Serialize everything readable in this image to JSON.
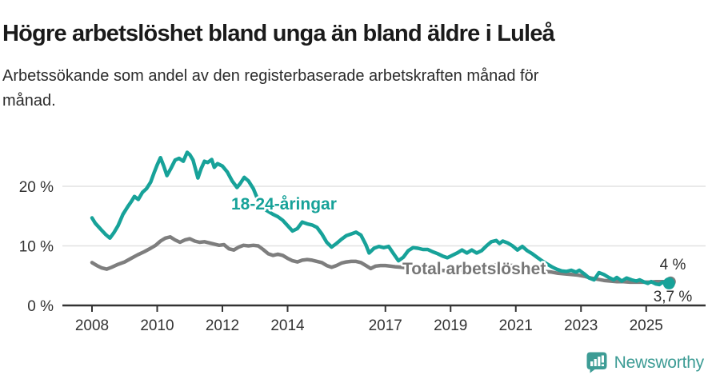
{
  "header": {
    "title": "Högre arbetslöshet bland unga än bland äldre i Luleå",
    "subtitle_lines": [
      "Arbetssökande som andel av den registerbaserade arbetskraften månad för",
      "månad."
    ]
  },
  "footer": {
    "brand": "Newsworthy"
  },
  "colors": {
    "young_line": "#17A299",
    "total_line": "#7E7E7E",
    "total_label": "#767676",
    "axis": "#333333",
    "grid": "#e2e2e2",
    "end_label_text": "#2e2e2e",
    "logo_teal": "#3D9C95"
  },
  "chart_data": {
    "type": "line",
    "title": "Högre arbetslöshet bland unga än bland äldre i Luleå",
    "subtitle": "Arbetssökande som andel av den registerbaserade arbetskraften månad för månad.",
    "unit": "%",
    "grid": "horizontal-only",
    "legend": "inline-labels",
    "x_tick_labels": [
      "2008",
      "2010",
      "2012",
      "2014",
      "2017",
      "2019",
      "2021",
      "2023",
      "2025"
    ],
    "x_tick_years": [
      2008,
      2010,
      2012,
      2014,
      2017,
      2019,
      2021,
      2023,
      2025
    ],
    "y_ticks": [
      0,
      10,
      20
    ],
    "y_tick_labels": [
      "0 %",
      "10 %",
      "20 %"
    ],
    "ylim": [
      0,
      27
    ],
    "xlim_years": [
      2007.1,
      2026.8
    ],
    "series": [
      {
        "id": "total",
        "name": "Total arbetslöshet",
        "color": "#7E7E7E",
        "label_color": "#767676",
        "end_label": "4 %",
        "end_value": 4.0,
        "points": [
          [
            2008.0,
            7.2
          ],
          [
            2008.15,
            6.7
          ],
          [
            2008.3,
            6.3
          ],
          [
            2008.45,
            6.1
          ],
          [
            2008.6,
            6.4
          ],
          [
            2008.8,
            6.9
          ],
          [
            2009.0,
            7.3
          ],
          [
            2009.2,
            7.9
          ],
          [
            2009.4,
            8.5
          ],
          [
            2009.6,
            9.0
          ],
          [
            2009.8,
            9.6
          ],
          [
            2009.95,
            10.1
          ],
          [
            2010.1,
            10.8
          ],
          [
            2010.25,
            11.3
          ],
          [
            2010.4,
            11.5
          ],
          [
            2010.55,
            11.0
          ],
          [
            2010.7,
            10.6
          ],
          [
            2010.85,
            11.0
          ],
          [
            2011.0,
            11.2
          ],
          [
            2011.15,
            10.8
          ],
          [
            2011.3,
            10.6
          ],
          [
            2011.45,
            10.7
          ],
          [
            2011.6,
            10.5
          ],
          [
            2011.75,
            10.3
          ],
          [
            2011.9,
            10.1
          ],
          [
            2012.05,
            10.2
          ],
          [
            2012.2,
            9.5
          ],
          [
            2012.35,
            9.3
          ],
          [
            2012.5,
            9.8
          ],
          [
            2012.65,
            10.1
          ],
          [
            2012.8,
            10.0
          ],
          [
            2012.95,
            10.1
          ],
          [
            2013.1,
            10.0
          ],
          [
            2013.25,
            9.4
          ],
          [
            2013.4,
            8.7
          ],
          [
            2013.55,
            8.4
          ],
          [
            2013.7,
            8.6
          ],
          [
            2013.85,
            8.4
          ],
          [
            2014.0,
            7.9
          ],
          [
            2014.15,
            7.5
          ],
          [
            2014.3,
            7.3
          ],
          [
            2014.45,
            7.6
          ],
          [
            2014.6,
            7.7
          ],
          [
            2014.75,
            7.6
          ],
          [
            2014.9,
            7.4
          ],
          [
            2015.05,
            7.2
          ],
          [
            2015.2,
            6.7
          ],
          [
            2015.35,
            6.4
          ],
          [
            2015.5,
            6.7
          ],
          [
            2015.65,
            7.1
          ],
          [
            2015.8,
            7.3
          ],
          [
            2015.95,
            7.4
          ],
          [
            2016.1,
            7.4
          ],
          [
            2016.25,
            7.2
          ],
          [
            2016.4,
            6.7
          ],
          [
            2016.55,
            6.2
          ],
          [
            2016.7,
            6.6
          ],
          [
            2016.85,
            6.7
          ],
          [
            2017.0,
            6.7
          ],
          [
            2017.15,
            6.6
          ],
          [
            2017.3,
            6.5
          ],
          [
            2017.5,
            6.4
          ],
          [
            2017.7,
            6.3
          ],
          [
            2017.9,
            6.2
          ],
          [
            2018.1,
            6.1
          ],
          [
            2018.3,
            6.0
          ],
          [
            2018.5,
            5.9
          ],
          [
            2018.7,
            5.9
          ],
          [
            2018.9,
            5.8
          ],
          [
            2019.1,
            5.9
          ],
          [
            2019.3,
            5.9
          ],
          [
            2019.5,
            5.8
          ],
          [
            2019.7,
            5.9
          ],
          [
            2019.9,
            6.0
          ],
          [
            2020.1,
            6.4
          ],
          [
            2020.3,
            6.7
          ],
          [
            2020.5,
            6.9
          ],
          [
            2020.7,
            6.8
          ],
          [
            2020.9,
            6.7
          ],
          [
            2021.1,
            6.5
          ],
          [
            2021.3,
            6.3
          ],
          [
            2021.5,
            6.1
          ],
          [
            2021.7,
            5.9
          ],
          [
            2021.9,
            5.7
          ],
          [
            2022.1,
            5.6
          ],
          [
            2022.3,
            5.4
          ],
          [
            2022.5,
            5.3
          ],
          [
            2022.7,
            5.2
          ],
          [
            2022.9,
            5.1
          ],
          [
            2023.1,
            4.9
          ],
          [
            2023.3,
            4.6
          ],
          [
            2023.5,
            4.4
          ],
          [
            2023.7,
            4.2
          ],
          [
            2023.9,
            4.1
          ],
          [
            2024.1,
            4.0
          ],
          [
            2024.3,
            4.0
          ],
          [
            2024.5,
            3.9
          ],
          [
            2024.7,
            3.9
          ],
          [
            2024.9,
            3.9
          ],
          [
            2025.1,
            3.9
          ],
          [
            2025.3,
            4.0
          ],
          [
            2025.5,
            4.0
          ],
          [
            2025.75,
            4.0
          ]
        ]
      },
      {
        "id": "young",
        "name": "18-24-åringar",
        "color": "#17A299",
        "label_color": "#17A299",
        "end_label": "3,7 %",
        "end_value": 3.7,
        "points": [
          [
            2008.0,
            14.7
          ],
          [
            2008.1,
            13.8
          ],
          [
            2008.2,
            13.2
          ],
          [
            2008.3,
            12.6
          ],
          [
            2008.42,
            11.9
          ],
          [
            2008.55,
            11.3
          ],
          [
            2008.67,
            12.2
          ],
          [
            2008.8,
            13.4
          ],
          [
            2008.95,
            15.3
          ],
          [
            2009.1,
            16.6
          ],
          [
            2009.2,
            17.4
          ],
          [
            2009.3,
            18.3
          ],
          [
            2009.42,
            17.8
          ],
          [
            2009.55,
            19.0
          ],
          [
            2009.67,
            19.6
          ],
          [
            2009.8,
            20.7
          ],
          [
            2009.9,
            22.2
          ],
          [
            2010.0,
            23.6
          ],
          [
            2010.1,
            24.8
          ],
          [
            2010.2,
            23.4
          ],
          [
            2010.3,
            21.8
          ],
          [
            2010.42,
            23.0
          ],
          [
            2010.55,
            24.4
          ],
          [
            2010.67,
            24.7
          ],
          [
            2010.8,
            24.2
          ],
          [
            2010.92,
            25.7
          ],
          [
            2011.0,
            25.3
          ],
          [
            2011.1,
            24.4
          ],
          [
            2011.25,
            21.4
          ],
          [
            2011.35,
            23.0
          ],
          [
            2011.45,
            24.2
          ],
          [
            2011.55,
            24.0
          ],
          [
            2011.67,
            24.5
          ],
          [
            2011.75,
            23.2
          ],
          [
            2011.85,
            23.8
          ],
          [
            2012.0,
            23.4
          ],
          [
            2012.15,
            22.4
          ],
          [
            2012.3,
            20.9
          ],
          [
            2012.45,
            19.8
          ],
          [
            2012.55,
            20.5
          ],
          [
            2012.67,
            21.5
          ],
          [
            2012.8,
            20.9
          ],
          [
            2012.95,
            19.6
          ],
          [
            2013.1,
            17.6
          ],
          [
            2013.25,
            16.3
          ],
          [
            2013.4,
            15.8
          ],
          [
            2013.55,
            15.3
          ],
          [
            2013.7,
            14.9
          ],
          [
            2013.85,
            14.3
          ],
          [
            2014.0,
            13.4
          ],
          [
            2014.15,
            12.5
          ],
          [
            2014.3,
            12.9
          ],
          [
            2014.45,
            14.0
          ],
          [
            2014.6,
            13.7
          ],
          [
            2014.75,
            13.5
          ],
          [
            2014.9,
            13.1
          ],
          [
            2015.05,
            12.0
          ],
          [
            2015.2,
            10.6
          ],
          [
            2015.35,
            9.8
          ],
          [
            2015.5,
            10.4
          ],
          [
            2015.65,
            11.1
          ],
          [
            2015.8,
            11.7
          ],
          [
            2015.95,
            12.0
          ],
          [
            2016.1,
            12.3
          ],
          [
            2016.25,
            11.8
          ],
          [
            2016.4,
            10.2
          ],
          [
            2016.5,
            8.8
          ],
          [
            2016.65,
            9.6
          ],
          [
            2016.8,
            9.9
          ],
          [
            2016.95,
            9.7
          ],
          [
            2017.1,
            9.9
          ],
          [
            2017.25,
            8.7
          ],
          [
            2017.4,
            7.5
          ],
          [
            2017.55,
            8.1
          ],
          [
            2017.7,
            9.2
          ],
          [
            2017.85,
            9.7
          ],
          [
            2018.0,
            9.6
          ],
          [
            2018.15,
            9.4
          ],
          [
            2018.3,
            9.4
          ],
          [
            2018.45,
            9.0
          ],
          [
            2018.6,
            8.7
          ],
          [
            2018.75,
            8.3
          ],
          [
            2018.9,
            8.0
          ],
          [
            2019.05,
            8.4
          ],
          [
            2019.2,
            8.8
          ],
          [
            2019.35,
            9.3
          ],
          [
            2019.5,
            8.8
          ],
          [
            2019.65,
            9.3
          ],
          [
            2019.8,
            8.8
          ],
          [
            2019.95,
            9.2
          ],
          [
            2020.1,
            10.0
          ],
          [
            2020.25,
            10.7
          ],
          [
            2020.4,
            10.9
          ],
          [
            2020.5,
            10.4
          ],
          [
            2020.6,
            10.8
          ],
          [
            2020.75,
            10.5
          ],
          [
            2020.9,
            10.0
          ],
          [
            2021.05,
            9.3
          ],
          [
            2021.2,
            9.9
          ],
          [
            2021.35,
            9.2
          ],
          [
            2021.5,
            8.7
          ],
          [
            2021.65,
            8.1
          ],
          [
            2021.8,
            7.5
          ],
          [
            2021.95,
            7.0
          ],
          [
            2022.1,
            6.5
          ],
          [
            2022.25,
            6.1
          ],
          [
            2022.4,
            5.8
          ],
          [
            2022.55,
            5.7
          ],
          [
            2022.7,
            5.9
          ],
          [
            2022.85,
            5.6
          ],
          [
            2022.95,
            5.9
          ],
          [
            2023.1,
            5.3
          ],
          [
            2023.25,
            4.6
          ],
          [
            2023.4,
            4.3
          ],
          [
            2023.55,
            5.5
          ],
          [
            2023.7,
            5.2
          ],
          [
            2023.85,
            4.7
          ],
          [
            2024.0,
            4.3
          ],
          [
            2024.1,
            4.7
          ],
          [
            2024.25,
            4.1
          ],
          [
            2024.4,
            4.6
          ],
          [
            2024.55,
            4.3
          ],
          [
            2024.7,
            4.1
          ],
          [
            2024.8,
            4.3
          ],
          [
            2024.95,
            3.9
          ],
          [
            2025.05,
            3.7
          ],
          [
            2025.15,
            4.0
          ],
          [
            2025.3,
            3.6
          ],
          [
            2025.4,
            3.5
          ],
          [
            2025.5,
            3.9
          ],
          [
            2025.6,
            3.6
          ],
          [
            2025.7,
            3.7
          ]
        ]
      }
    ]
  }
}
